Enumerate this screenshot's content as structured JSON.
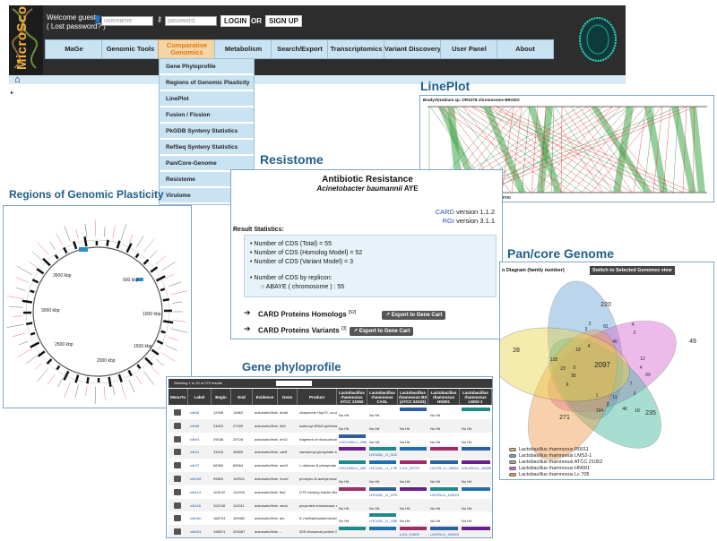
{
  "header": {
    "logo": "MicroScope",
    "welcome": "Welcome guest",
    "lost_password": "( Lost password? )",
    "username_placeholder": "username",
    "password_placeholder": "password",
    "login_label": "LOGIN",
    "or_label": "OR",
    "signup_label": "SIGN UP"
  },
  "menu": [
    {
      "label": "MaGe"
    },
    {
      "label": "Genomic Tools"
    },
    {
      "label": "Comparative Genomics",
      "active": true
    },
    {
      "label": "Metabolism"
    },
    {
      "label": "Search/Export"
    },
    {
      "label": "Transcriptomics"
    },
    {
      "label": "Variant Discovery"
    },
    {
      "label": "User Panel"
    },
    {
      "label": "About"
    }
  ],
  "dropdown": [
    "Gene Phyloprofile",
    "Regions of Genomic Plasticity",
    "LinePlot",
    "Fusion / Fission",
    "PkGDB Synteny Statistics",
    "RefSeq Synteny Statistics",
    "Pan/Core-Genome",
    "Resistome",
    "Virulome"
  ],
  "sections": {
    "lineplot": "LinePlot",
    "resistome": "Resistome",
    "genomic_plasticity": "Regions of Genomic Plasticity",
    "pancore": "Pan/core Genome",
    "phyloprofile": "Gene phyloprofile"
  },
  "lineplot": {
    "top_label": "Bradyrhizobium sp. ORS278 chromosome BRADO",
    "bottom_label": "Bradyrhizobium sp. BTAi chromosome BBTAI"
  },
  "genomic": {
    "ticks": [
      "500 kbp",
      "1000 kbp",
      "1500 kbp",
      "2000 kbp",
      "2500 kbp",
      "3000 kbp",
      "3500 kbp"
    ]
  },
  "resistome": {
    "title": "Antibiotic Resistance",
    "organism": "Acinetobacter baumannii",
    "strain": "AYE",
    "card_name": "CARD",
    "card_version": "version 1.1.2",
    "rgi_name": "RGI",
    "rgi_version": "version 3.1.1",
    "stats_label": "Result Statistics:",
    "stat1": "Number of CDS (Total) = 55",
    "stat2": "Number of CDS (Homolog Model) = 52",
    "stat3": "Number of CDS (Variant Model) = 3",
    "stat4": "Number of CDS by replicon:",
    "stat5": "ABAYE ( chromosome ) : 55",
    "homologs_label": "CARD Proteins Homologs",
    "homologs_count": "[52]",
    "variants_label": "CARD Proteins Variants",
    "variants_count": "[3]",
    "export_label": "Export to Gene Cart"
  },
  "pancore": {
    "venn_label": "n Diagram (family number)",
    "switch_label": "Switch to Selected Genomes view",
    "numbers": [
      "220",
      "49",
      "28",
      "271",
      "235",
      "2097",
      "81",
      "4",
      "2",
      "3",
      "40",
      "18",
      "12",
      "128",
      "23",
      "95",
      "69",
      "4",
      "3",
      "11",
      "3",
      "1",
      "194",
      "46",
      "18",
      "6",
      "0",
      "4",
      "7",
      "2"
    ],
    "legend": [
      {
        "name": "Lactobacillus rhamnosus R0011",
        "color": "#e8b24a"
      },
      {
        "name": "Lactobacillus rhamnosus LMS2-1",
        "color": "#6aa3d8"
      },
      {
        "name": "Lactobacillus rhamnosus ATCC 21052",
        "color": "#a8a8a8"
      },
      {
        "name": "Lactobacillus rhamnosus HN001",
        "color": "#d86ad0"
      },
      {
        "name": "Lactobacillus rhamnosus Lc 705",
        "color": "#f09a4a"
      }
    ]
  },
  "phyloprofile": {
    "toolbar": "Showing 1 to 10 of 270 results",
    "headers": [
      "MenuTa",
      "Label",
      "Begin",
      "End",
      "Evidence",
      "Gene",
      "Product",
      "Lactobacillus rhamnosus ATCC 21052",
      "Lactobacillus rhamnosus CASL",
      "Lactobacillus rhamnosus BS (ATCC 53103)",
      "Lactobacillus rhamnosus HN001",
      "Lactobacillus rhamnosus LMS2-1"
    ],
    "rows": [
      {
        "label": "rdb06",
        "begin": "12946",
        "end": "14862",
        "evidence": "automatic/finished",
        "gene": "dnaK",
        "product": "chaperone Hsp70, co-chaperone with DnaJ",
        "c1": "No Hit",
        "c2": "No Hit",
        "c3": "",
        "c4": "No Hit",
        "c5": ""
      },
      {
        "label": "rdb08",
        "begin": "24603",
        "end": "27499",
        "evidence": "automatic/finished",
        "gene": "lleS",
        "product": "isoleucyl-tRNA synthetase",
        "c1": "No Hit",
        "c2": "No Hit",
        "c3": "No Hit",
        "c4": "No Hit",
        "c5": "No Hit"
      },
      {
        "label": "rdb04",
        "begin": "29036",
        "end": "29728",
        "evidence": "automatic/finished",
        "gene": "rimO",
        "product": "fragment of ribonucleotide hydrolase 3 (part 1)",
        "c1": "LRG1552v1_00857",
        "c2": "No Hit",
        "c3": "No Hit",
        "c4": "No Hit",
        "c5": "No Hit"
      },
      {
        "label": "rdb41",
        "begin": "33444",
        "end": "36669",
        "evidence": "automatic/finished",
        "gene": "carB",
        "product": "carbamoyl-phosphate synthase large subunit",
        "c1": "",
        "c2": "LRCASL_r1_0232603",
        "c3": "",
        "c4": "",
        "c5": ""
      },
      {
        "label": "rdb72",
        "begin": "66369",
        "end": "68064",
        "evidence": "automatic/finished",
        "gene": "aceD",
        "product": "L-ribulose-5-phosphate 4-epimerase",
        "c1": "LRG1552v1_40978",
        "c2": "LRCASL_r1_1765803",
        "c3": "LGG_02723",
        "c4": "LNCRL v1_380519",
        "c5": "LRLMS2v1_28389"
      },
      {
        "label": "rdb108",
        "begin": "99800",
        "end": "100911",
        "evidence": "automatic/finished",
        "gene": "mvaY",
        "product": "phospho-N-acetylmuramoyl-pentapeptide-transferase",
        "c1": "No Hit",
        "c2": "No Hit",
        "c3": "No Hit",
        "c4": "No Hit",
        "c5": "No Hit"
      },
      {
        "label": "rdb113",
        "begin": "109132",
        "end": "110200",
        "evidence": "automatic/finished",
        "gene": "ftsZ",
        "product": "GTP-binding tubulin-like cell division protein",
        "c1": "",
        "c2": "LRCASL_r1_070001",
        "c3": "",
        "c4": "LNCRLv1_100001",
        "c5": ""
      },
      {
        "label": "rdb116",
        "begin": "112108",
        "end": "114011",
        "evidence": "automatic/finished",
        "gene": "secA",
        "product": "preprotein translocase subunit, ATPase",
        "c1": "No Hit",
        "c2": "No Hit",
        "c3": "No Hit",
        "c4": "No Hit",
        "c5": "No Hit"
      },
      {
        "label": "rdb160",
        "begin": "168704",
        "end": "169482",
        "evidence": "automatic/finished",
        "gene": "pfs",
        "product": "5'-methylthioadenosine/S-adenosylhomocysteine nucleosidase",
        "c1": "No Hit",
        "c2": "LRCASL_r1_2080003",
        "c3": "No Hit",
        "c4": "No Hit",
        "c5": "No Hit"
      },
      {
        "label": "rdb204",
        "begin": "198974",
        "end": "200087",
        "evidence": "automatic/finished",
        "gene": "...",
        "product": "30S ribosomal protein S2",
        "c1": "",
        "c2": "",
        "c3": "LGG_01809",
        "c4": "LNCRLv1_200001",
        "c5": ""
      }
    ]
  }
}
